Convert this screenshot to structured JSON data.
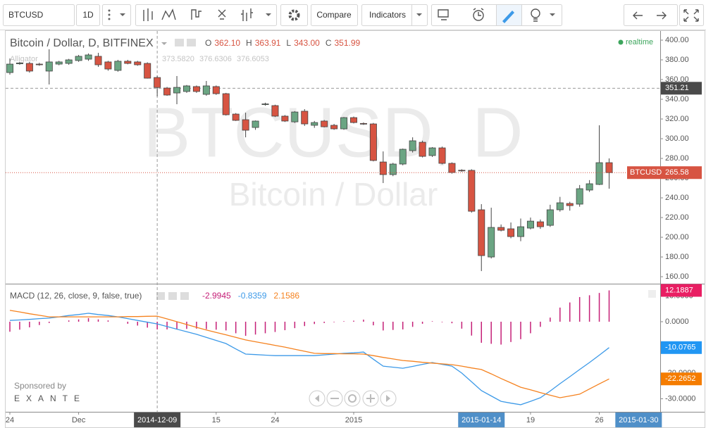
{
  "toolbar": {
    "symbol": "BTCUSD",
    "interval": "1D",
    "compare": "Compare",
    "indicators": "Indicators"
  },
  "sponsor": {
    "text": "Sponsored by",
    "brand": "EXANTE"
  },
  "chart_data": [
    {
      "type": "candlestick",
      "title": "Bitcoin / Dollar, D, BITFINEX",
      "ohlc": [
        {
          "name": "O",
          "label": "362.10"
        },
        {
          "name": "H",
          "label": "363.91"
        },
        {
          "name": "L",
          "label": "343.00"
        },
        {
          "name": "C",
          "label": "351.99"
        }
      ],
      "watermark": [
        "BTCUSD, D",
        "Bitcoin / Dollar"
      ],
      "realtime": "realtime",
      "indicator": {
        "name": "Alligator",
        "values": [
          "373.5820",
          "376.6306",
          "376.6053"
        ]
      },
      "colors": {
        "up": "#6ba583",
        "down": "#d75442"
      },
      "categories": [
        null,
        null,
        null,
        null,
        null,
        null,
        null,
        null,
        null,
        null,
        null,
        null,
        null,
        null,
        null,
        null,
        null,
        null,
        null,
        null,
        null,
        null,
        null,
        null,
        null,
        null,
        null,
        null,
        null,
        null,
        null,
        null,
        null,
        null,
        null,
        null,
        null,
        null,
        null,
        null,
        null,
        null,
        null,
        null,
        null,
        null,
        null,
        null,
        null,
        null,
        null,
        null,
        null,
        null,
        null,
        null,
        null,
        null,
        null,
        null,
        null,
        null
      ],
      "open": [
        367.1,
        376,
        376.4,
        375.7,
        368.6,
        375.7,
        376.4,
        379.3,
        380.7,
        383.6,
        377.9,
        369.3,
        378.6,
        377.9,
        376.4,
        362.1,
        351.4,
        346.4,
        347.9,
        352.9,
        345,
        352.9,
        345.7,
        325,
        319.3,
        311.4,
        335,
        333.6,
        322.9,
        317.1,
        327.9,
        313.6,
        317.9,
        313.6,
        310,
        321.4,
        315.5,
        315,
        276.4,
        263.6,
        274.3,
        287.9,
        296.4,
        282.9,
        290.7,
        275,
        268,
        267.9,
        227.9,
        180,
        210,
        208.6,
        200.7,
        209.3,
        215.7,
        212.1,
        227.9,
        234.3,
        233.6,
        247.9,
        253.6,
        275.7
      ],
      "high": [
        381.4,
        378,
        378,
        377,
        390.7,
        379,
        381,
        385,
        386.5,
        387.1,
        379,
        380,
        380,
        379,
        377.5,
        363.91,
        352.5,
        363.6,
        354.5,
        354,
        358.6,
        354,
        346.5,
        326,
        326.4,
        318.5,
        336.5,
        334.5,
        324,
        328,
        330,
        318,
        319,
        315,
        322,
        322.5,
        316.5,
        316,
        287.1,
        275.5,
        290,
        301.4,
        298,
        291.5,
        292,
        276,
        269,
        269,
        233.6,
        230,
        213,
        215,
        219,
        220,
        218,
        233,
        241,
        236,
        253,
        258,
        313.6,
        280
      ],
      "low": [
        365,
        375,
        367,
        374,
        355,
        374.5,
        375,
        378,
        379,
        372.9,
        369,
        368,
        375.5,
        374,
        361,
        343,
        343.5,
        335,
        346.5,
        346.5,
        343.6,
        344.5,
        323.5,
        318,
        301.4,
        309,
        333.5,
        322,
        317,
        316,
        313,
        311,
        311.5,
        309,
        309,
        315.5,
        314,
        277,
        255,
        262,
        273,
        286,
        281,
        281.5,
        274,
        264.5,
        266.5,
        225,
        165.7,
        178.5,
        206,
        199,
        196,
        208,
        208.5,
        210.5,
        226,
        227,
        231,
        246,
        253,
        249.3
      ],
      "close": [
        375.7,
        376.8,
        368.6,
        375.2,
        377.9,
        377.9,
        380,
        383.6,
        385,
        375,
        370.7,
        378.6,
        376.4,
        375,
        361.4,
        351.99,
        344.3,
        352.1,
        353.6,
        347.9,
        353.6,
        345.7,
        324.3,
        318.6,
        308.6,
        317.9,
        335.3,
        322.9,
        317.9,
        327.1,
        315,
        316.4,
        312.1,
        310,
        321.4,
        316.4,
        315,
        277.9,
        263.6,
        274.3,
        289.3,
        297.9,
        282.1,
        290.7,
        275,
        265.7,
        267.5,
        226.4,
        181.4,
        210,
        207.1,
        200.7,
        210.7,
        216.4,
        210.7,
        227.9,
        235,
        232.1,
        249.3,
        254.3,
        275.7,
        265.58
      ],
      "xlim": [
        -0.43,
        66.2
      ],
      "xticks": [
        {
          "value": 0,
          "label": "24"
        },
        {
          "value": 7,
          "label": "Dec"
        },
        {
          "value": 15,
          "label": "2014-12-09",
          "badge": "#4a4a4a"
        },
        {
          "value": 21,
          "label": "15"
        },
        {
          "value": 27,
          "label": "24"
        },
        {
          "value": 35,
          "label": "2015"
        },
        {
          "value": 48,
          "label": "2015-01-14",
          "badge": "#4f8fc8"
        },
        {
          "value": 53,
          "label": "19"
        },
        {
          "value": 60,
          "label": "26"
        },
        {
          "value": 64,
          "label": "2015-01-30",
          "badge": "#4f8fc8"
        }
      ],
      "ylim": [
        152.9,
        409.3
      ],
      "yticks": [
        {
          "value": 160,
          "label": "160.00"
        },
        {
          "value": 180,
          "label": "180.00"
        },
        {
          "value": 200,
          "label": "200.00"
        },
        {
          "value": 220,
          "label": "220.00"
        },
        {
          "value": 240,
          "label": "240.00"
        },
        {
          "value": 260,
          "label": "260.00"
        },
        {
          "value": 280,
          "label": "280.00"
        },
        {
          "value": 300,
          "label": "300.00"
        },
        {
          "value": 320,
          "label": "320.00"
        },
        {
          "value": 340,
          "label": "340.00"
        },
        {
          "value": 360,
          "label": "360.00"
        },
        {
          "value": 380,
          "label": "380.00"
        },
        {
          "value": 400,
          "label": "400.00"
        }
      ],
      "grid": false,
      "crosshair": {
        "x": 15,
        "value": 351.21,
        "label": "351.21"
      },
      "last_price": {
        "name": "BTCUSD",
        "value": 265.58,
        "label": "265.58",
        "color": "#d75442"
      }
    },
    {
      "type": "macd",
      "title": "MACD (12, 26, close, 9, false, true)",
      "ylim": [
        -35.07,
        14.25
      ],
      "yticks": [
        {
          "value": 10,
          "label": "10.0000"
        },
        {
          "value": 0,
          "label": "0.0000"
        },
        {
          "value": -10,
          "label": "-10.0000"
        },
        {
          "value": -20,
          "label": "-20.0000"
        },
        {
          "value": -30,
          "label": "-30.0000"
        }
      ],
      "series": [
        {
          "type": "histogram",
          "color": "#c51f77",
          "badge": "#e91e63",
          "legend_label": "-2.9945",
          "last_label": "12.1887",
          "values": [
            -3.9,
            -3.1,
            -2.2,
            -1.3,
            -0.5,
            0,
            0.5,
            0.9,
            1.4,
            0.9,
            0.5,
            0,
            -0.8,
            -1.5,
            -2.3,
            -2.9945,
            -3.0,
            -2.9,
            -2.8,
            -2.7,
            -2.9,
            -3.1,
            -3.4,
            -4.5,
            -5.5,
            -5.0,
            -4.5,
            -4.0,
            -3.3,
            -2.5,
            -1.7,
            -0.9,
            -0.5,
            -0.2,
            0.2,
            0.4,
            0.8,
            -1.4,
            -3.4,
            -3.2,
            -3.0,
            -2.0,
            -0.8,
            0.2,
            -0.2,
            -0.6,
            -2.7,
            -5.4,
            -8.2,
            -8.6,
            -8.9,
            -7.9,
            -6.8,
            -4.5,
            -2.0,
            1.6,
            5.5,
            7.5,
            9.6,
            10.3,
            11.2,
            12.1887
          ]
        },
        {
          "type": "line",
          "color": "#3d9ae8",
          "badge": "#2196f3",
          "legend_label": "-0.8359",
          "last_label": "-10.0765",
          "values": [
            0.5,
            0.7,
            0.9,
            1.2,
            1.4,
            1.9,
            2.4,
            2.8,
            3.3,
            2.8,
            2.4,
            1.9,
            1.2,
            0.5,
            -0.2,
            -0.8359,
            -1.9,
            -2.9,
            -3.9,
            -4.9,
            -6.1,
            -7.3,
            -8.5,
            -10.6,
            -12.6,
            -12.8,
            -13.0,
            -13.2,
            -13.2,
            -13.2,
            -13.2,
            -13.2,
            -12.9,
            -12.6,
            -12.3,
            -12.1,
            -11.8,
            -14.6,
            -17.3,
            -17.7,
            -18.1,
            -17.4,
            -16.6,
            -15.9,
            -16.6,
            -17.3,
            -20.0,
            -23.4,
            -26.8,
            -28.9,
            -31.0,
            -31.7,
            -32.3,
            -31.0,
            -29.6,
            -27.0,
            -24.1,
            -21.4,
            -18.6,
            -15.9,
            -13.0,
            -10.0765
          ]
        },
        {
          "type": "line",
          "color": "#f5821f",
          "badge": "#f57c00",
          "legend_label": "2.1586",
          "last_label": "-22.2652",
          "values": [
            4.4,
            3.8,
            3.1,
            2.5,
            1.9,
            1.9,
            1.9,
            1.9,
            1.9,
            1.9,
            1.9,
            1.9,
            2.0,
            2.0,
            2.1,
            2.1586,
            1.1,
            0,
            -1.1,
            -2.2,
            -3.2,
            -4.2,
            -5.1,
            -6.1,
            -7.1,
            -7.8,
            -8.5,
            -9.2,
            -9.9,
            -10.7,
            -11.5,
            -12.3,
            -12.4,
            -12.4,
            -12.5,
            -12.5,
            -12.6,
            -13.2,
            -13.9,
            -14.5,
            -15.1,
            -15.4,
            -15.8,
            -16.1,
            -16.4,
            -16.7,
            -17.3,
            -18.0,
            -18.6,
            -20.3,
            -22.1,
            -23.8,
            -25.5,
            -26.5,
            -27.6,
            -28.6,
            -29.6,
            -28.9,
            -28.2,
            -26.2,
            -24.2,
            -22.2652
          ]
        }
      ]
    }
  ]
}
